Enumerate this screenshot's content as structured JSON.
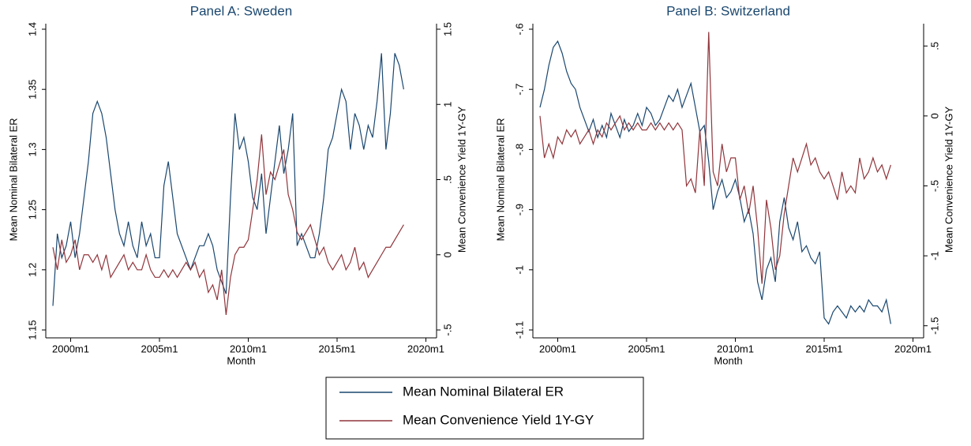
{
  "chart_data": [
    {
      "type": "line",
      "title": "Panel A: Sweden",
      "xlabel": "Month",
      "ylabel": "Mean Nominal Bilateral ER",
      "y2label": "Mean Convenience Yield 1Y-GY",
      "x": [
        1999,
        1999.25,
        1999.5,
        1999.75,
        2000,
        2000.25,
        2000.5,
        2000.75,
        2001,
        2001.25,
        2001.5,
        2001.75,
        2002,
        2002.25,
        2002.5,
        2002.75,
        2003,
        2003.25,
        2003.5,
        2003.75,
        2004,
        2004.25,
        2004.5,
        2004.75,
        2005,
        2005.25,
        2005.5,
        2005.75,
        2006,
        2006.25,
        2006.5,
        2006.75,
        2007,
        2007.25,
        2007.5,
        2007.75,
        2008,
        2008.25,
        2008.5,
        2008.75,
        2009,
        2009.25,
        2009.5,
        2009.75,
        2010,
        2010.25,
        2010.5,
        2010.75,
        2011,
        2011.25,
        2011.5,
        2011.75,
        2012,
        2012.25,
        2012.5,
        2012.75,
        2013,
        2013.25,
        2013.5,
        2013.75,
        2014,
        2014.25,
        2014.5,
        2014.75,
        2015,
        2015.25,
        2015.5,
        2015.75,
        2016,
        2016.25,
        2016.5,
        2016.75,
        2017,
        2017.25,
        2017.5,
        2017.75,
        2018,
        2018.25,
        2018.5,
        2018.75
      ],
      "xlim": [
        1998.6,
        2020.6
      ],
      "xticks": [
        {
          "value": 2000,
          "label": "2000m1"
        },
        {
          "value": 2005,
          "label": "2005m1"
        },
        {
          "value": 2010,
          "label": "2010m1"
        },
        {
          "value": 2015,
          "label": "2015m1"
        },
        {
          "value": 2020,
          "label": "2020m1"
        }
      ],
      "ylim": [
        1.15,
        1.4
      ],
      "yticks": [
        1.15,
        1.2,
        1.25,
        1.3,
        1.35,
        1.4
      ],
      "y2lim": [
        -0.5,
        1.5
      ],
      "y2ticks": [
        {
          "value": -0.5,
          "label": "-.5"
        },
        0,
        {
          "value": 0.5,
          "label": ".5"
        },
        1,
        1.5
      ],
      "series": [
        {
          "name": "Mean Nominal Bilateral ER",
          "color": "#1a476f",
          "values": [
            1.17,
            1.23,
            1.21,
            1.22,
            1.24,
            1.21,
            1.23,
            1.26,
            1.29,
            1.33,
            1.34,
            1.33,
            1.31,
            1.28,
            1.25,
            1.23,
            1.22,
            1.24,
            1.22,
            1.21,
            1.24,
            1.22,
            1.23,
            1.21,
            1.21,
            1.27,
            1.29,
            1.26,
            1.23,
            1.22,
            1.21,
            1.2,
            1.21,
            1.22,
            1.22,
            1.23,
            1.22,
            1.2,
            1.19,
            1.18,
            1.26,
            1.33,
            1.3,
            1.31,
            1.29,
            1.26,
            1.25,
            1.28,
            1.23,
            1.26,
            1.29,
            1.32,
            1.28,
            1.3,
            1.33,
            1.22,
            1.23,
            1.22,
            1.21,
            1.21,
            1.23,
            1.26,
            1.3,
            1.31,
            1.33,
            1.35,
            1.34,
            1.3,
            1.33,
            1.32,
            1.3,
            1.32,
            1.31,
            1.34,
            1.38,
            1.3,
            1.33,
            1.38,
            1.37,
            1.35
          ]
        },
        {
          "name": "Mean Convenience Yield 1Y-GY",
          "color": "#90353b",
          "axis": "y2",
          "values": [
            0.05,
            -0.1,
            0.1,
            -0.05,
            0,
            0.1,
            -0.1,
            0,
            0,
            -0.05,
            0,
            -0.1,
            0,
            -0.15,
            -0.1,
            -0.05,
            0,
            -0.1,
            -0.05,
            -0.1,
            -0.1,
            0,
            -0.1,
            -0.15,
            -0.15,
            -0.1,
            -0.15,
            -0.1,
            -0.15,
            -0.1,
            -0.05,
            -0.1,
            -0.05,
            -0.15,
            -0.1,
            -0.25,
            -0.2,
            -0.3,
            -0.1,
            -0.4,
            -0.15,
            0,
            0.05,
            0.05,
            0.1,
            0.3,
            0.5,
            0.8,
            0.4,
            0.55,
            0.5,
            0.6,
            0.7,
            0.4,
            0.3,
            0.15,
            0.1,
            0.15,
            0.2,
            0.1,
            0,
            0.05,
            -0.05,
            -0.1,
            -0.05,
            0,
            -0.1,
            -0.05,
            0.05,
            -0.1,
            -0.05,
            -0.15,
            -0.1,
            -0.05,
            0,
            0.05,
            0.05,
            0.1,
            0.15,
            0.2
          ]
        }
      ]
    },
    {
      "type": "line",
      "title": "Panel B: Switzerland",
      "xlabel": "Month",
      "ylabel": "Mean Nominal Bilateral ER",
      "y2label": "Mean Convenience Yield 1Y-GY",
      "x": [
        1999,
        1999.25,
        1999.5,
        1999.75,
        2000,
        2000.25,
        2000.5,
        2000.75,
        2001,
        2001.25,
        2001.5,
        2001.75,
        2002,
        2002.25,
        2002.5,
        2002.75,
        2003,
        2003.25,
        2003.5,
        2003.75,
        2004,
        2004.25,
        2004.5,
        2004.75,
        2005,
        2005.25,
        2005.5,
        2005.75,
        2006,
        2006.25,
        2006.5,
        2006.75,
        2007,
        2007.25,
        2007.5,
        2007.75,
        2008,
        2008.25,
        2008.5,
        2008.75,
        2009,
        2009.25,
        2009.5,
        2009.75,
        2010,
        2010.25,
        2010.5,
        2010.75,
        2011,
        2011.25,
        2011.5,
        2011.75,
        2012,
        2012.25,
        2012.5,
        2012.75,
        2013,
        2013.25,
        2013.5,
        2013.75,
        2014,
        2014.25,
        2014.5,
        2014.75,
        2015,
        2015.25,
        2015.5,
        2015.75,
        2016,
        2016.25,
        2016.5,
        2016.75,
        2017,
        2017.25,
        2017.5,
        2017.75,
        2018,
        2018.25,
        2018.5,
        2018.75
      ],
      "xlim": [
        1998.6,
        2020.6
      ],
      "xticks": [
        {
          "value": 2000,
          "label": "2000m1"
        },
        {
          "value": 2005,
          "label": "2005m1"
        },
        {
          "value": 2010,
          "label": "2010m1"
        },
        {
          "value": 2015,
          "label": "2015m1"
        },
        {
          "value": 2020,
          "label": "2020m1"
        }
      ],
      "ylim": [
        -1.1,
        -0.6
      ],
      "yticks": [
        {
          "value": -1.1,
          "label": "-1.1"
        },
        {
          "value": -1,
          "label": "-1"
        },
        {
          "value": -0.9,
          "label": "-.9"
        },
        {
          "value": -0.8,
          "label": "-.8"
        },
        {
          "value": -0.7,
          "label": "-.7"
        },
        {
          "value": -0.6,
          "label": "-.6"
        }
      ],
      "y2lim": [
        -1.53,
        0.62
      ],
      "y2ticks": [
        -1.5,
        -1,
        {
          "value": -0.5,
          "label": "-.5"
        },
        0,
        {
          "value": 0.5,
          "label": ".5"
        }
      ],
      "series": [
        {
          "name": "Mean Nominal Bilateral ER",
          "color": "#1a476f",
          "values": [
            -0.73,
            -0.7,
            -0.66,
            -0.63,
            -0.62,
            -0.64,
            -0.67,
            -0.69,
            -0.7,
            -0.73,
            -0.75,
            -0.77,
            -0.75,
            -0.78,
            -0.76,
            -0.78,
            -0.74,
            -0.76,
            -0.78,
            -0.75,
            -0.77,
            -0.76,
            -0.74,
            -0.76,
            -0.73,
            -0.74,
            -0.76,
            -0.75,
            -0.73,
            -0.71,
            -0.72,
            -0.7,
            -0.73,
            -0.71,
            -0.69,
            -0.73,
            -0.77,
            -0.76,
            -0.82,
            -0.9,
            -0.87,
            -0.85,
            -0.88,
            -0.87,
            -0.85,
            -0.88,
            -0.92,
            -0.9,
            -0.94,
            -1.02,
            -1.05,
            -1,
            -0.98,
            -1.02,
            -0.92,
            -0.88,
            -0.93,
            -0.95,
            -0.92,
            -0.97,
            -0.96,
            -0.98,
            -0.99,
            -0.97,
            -1.08,
            -1.09,
            -1.07,
            -1.06,
            -1.07,
            -1.08,
            -1.06,
            -1.07,
            -1.06,
            -1.07,
            -1.05,
            -1.06,
            -1.06,
            -1.07,
            -1.05,
            -1.09
          ]
        },
        {
          "name": "Mean Convenience Yield 1Y-GY",
          "color": "#90353b",
          "axis": "y2",
          "values": [
            0,
            -0.3,
            -0.2,
            -0.3,
            -0.15,
            -0.2,
            -0.1,
            -0.15,
            -0.1,
            -0.2,
            -0.15,
            -0.1,
            -0.2,
            -0.1,
            -0.15,
            -0.05,
            -0.1,
            -0.05,
            0,
            -0.1,
            -0.05,
            -0.1,
            -0.05,
            -0.1,
            -0.1,
            -0.05,
            -0.1,
            -0.05,
            -0.1,
            -0.05,
            -0.1,
            -0.05,
            -0.1,
            -0.5,
            -0.45,
            -0.55,
            -0.1,
            -0.5,
            0.6,
            -0.4,
            -0.5,
            -0.2,
            -0.4,
            -0.3,
            -0.3,
            -0.6,
            -0.5,
            -0.7,
            -0.5,
            -0.8,
            -1.2,
            -0.6,
            -0.8,
            -1.1,
            -1,
            -0.7,
            -0.5,
            -0.3,
            -0.4,
            -0.3,
            -0.2,
            -0.35,
            -0.3,
            -0.4,
            -0.45,
            -0.4,
            -0.5,
            -0.6,
            -0.4,
            -0.55,
            -0.5,
            -0.55,
            -0.3,
            -0.45,
            -0.4,
            -0.3,
            -0.4,
            -0.35,
            -0.45,
            -0.35
          ]
        }
      ]
    }
  ]
}
